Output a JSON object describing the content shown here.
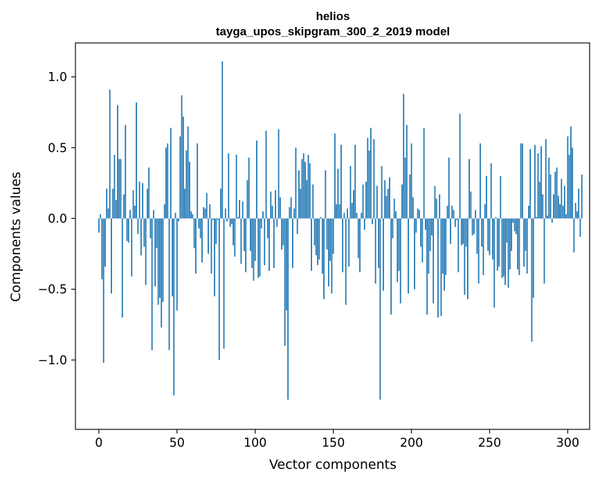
{
  "chart_data": {
    "type": "bar",
    "title_line1": "helios",
    "title_line2": "tayga_upos_skipgram_300_2_2019 model",
    "xlabel": "Vector components",
    "ylabel": "Components values",
    "xlim": [
      -15,
      314
    ],
    "ylim": [
      -1.49,
      1.24
    ],
    "xticks": [
      0,
      50,
      100,
      150,
      200,
      250,
      300
    ],
    "xtick_labels": [
      "0",
      "50",
      "100",
      "150",
      "200",
      "250",
      "300"
    ],
    "yticks": [
      -1.0,
      -0.5,
      0.0,
      0.5,
      1.0
    ],
    "ytick_labels": [
      "−1.0",
      "−0.5",
      "0.0",
      "0.5",
      "1.0"
    ],
    "bar_color": "#1f77b4",
    "values": [
      -0.1,
      0.03,
      -0.43,
      -1.02,
      -0.34,
      0.21,
      0.07,
      0.91,
      -0.53,
      0.21,
      0.45,
      0.13,
      0.8,
      0.42,
      0.42,
      -0.7,
      0.17,
      0.66,
      -0.16,
      -0.17,
      0.06,
      -0.41,
      0.2,
      0.09,
      0.82,
      -0.11,
      0.26,
      -0.26,
      0.25,
      -0.2,
      -0.47,
      0.21,
      0.36,
      -0.14,
      -0.93,
      0.06,
      -0.48,
      -0.21,
      -0.61,
      -0.56,
      -0.77,
      -0.59,
      0.1,
      0.5,
      0.53,
      -0.93,
      0.64,
      -0.55,
      -1.25,
      0.04,
      -0.65,
      -0.02,
      0.58,
      0.87,
      0.72,
      0.21,
      0.48,
      0.65,
      0.4,
      0.05,
      0.03,
      -0.21,
      -0.39,
      0.53,
      -0.07,
      -0.14,
      -0.31,
      0.08,
      0.07,
      0.18,
      -0.25,
      0.1,
      -0.39,
      -0.01,
      -0.55,
      -0.18,
      -0.01,
      -1.0,
      0.21,
      1.11,
      -0.92,
      0.07,
      -0.02,
      0.46,
      -0.06,
      -0.04,
      -0.19,
      -0.27,
      0.45,
      0.01,
      0.13,
      -0.32,
      0.12,
      -0.23,
      -0.38,
      0.27,
      0.43,
      -0.23,
      -0.35,
      -0.44,
      -0.3,
      0.55,
      -0.42,
      -0.41,
      -0.07,
      0.05,
      -0.33,
      0.62,
      -0.14,
      -0.37,
      0.19,
      0.09,
      -0.35,
      0.2,
      -0.06,
      0.63,
      0.15,
      -0.22,
      -0.19,
      -0.9,
      -0.65,
      -1.28,
      0.08,
      0.15,
      -0.35,
      0.07,
      0.5,
      -0.11,
      0.34,
      0.21,
      0.42,
      0.46,
      0.4,
      0.27,
      0.45,
      0.39,
      -0.37,
      0.24,
      -0.19,
      -0.26,
      -0.33,
      -0.29,
      0.01,
      -0.39,
      -0.57,
      0.34,
      -0.22,
      -0.48,
      -0.3,
      -0.53,
      -0.25,
      0.6,
      0.1,
      0.35,
      0.1,
      0.52,
      -0.38,
      0.04,
      -0.61,
      0.07,
      -0.34,
      0.37,
      0.11,
      0.2,
      0.52,
      0.04,
      -0.28,
      -0.38,
      0.04,
      0.24,
      -0.08,
      0.26,
      0.57,
      0.48,
      0.64,
      -0.04,
      0.56,
      -0.46,
      0.23,
      -0.35,
      -1.28,
      0.37,
      -0.51,
      0.27,
      0.16,
      0.21,
      0.29,
      -0.68,
      -0.14,
      0.14,
      0.05,
      -0.45,
      -0.37,
      -0.6,
      0.24,
      0.88,
      0.43,
      0.66,
      -0.53,
      0.31,
      0.53,
      0.15,
      -0.5,
      -0.1,
      0.07,
      0.06,
      -0.2,
      -0.31,
      0.64,
      -0.08,
      -0.68,
      -0.39,
      -0.23,
      -0.12,
      -0.6,
      0.23,
      0.14,
      -0.7,
      0.17,
      -0.69,
      -0.39,
      -0.51,
      -0.4,
      0.09,
      0.43,
      -0.18,
      0.09,
      0.06,
      -0.06,
      -0.01,
      -0.38,
      0.74,
      -0.19,
      -0.18,
      -0.54,
      -0.2,
      -0.57,
      0.42,
      0.19,
      -0.12,
      -0.11,
      0.06,
      -0.25,
      -0.46,
      0.53,
      -0.2,
      -0.4,
      0.1,
      0.3,
      -0.23,
      -0.26,
      0.39,
      -0.29,
      -0.63,
      0.01,
      -0.37,
      -0.34,
      0.3,
      -0.42,
      -0.41,
      -0.47,
      -0.17,
      -0.49,
      -0.36,
      -0.23,
      -0.03,
      -0.09,
      -0.11,
      -0.36,
      -0.4,
      0.53,
      0.53,
      -0.34,
      -0.23,
      -0.39,
      0.09,
      0.49,
      -0.87,
      -0.56,
      0.52,
      0.01,
      0.46,
      0.26,
      0.51,
      0.17,
      -0.46,
      0.56,
      0.02,
      0.43,
      0.31,
      -0.03,
      0.17,
      0.33,
      0.36,
      0.16,
      0.1,
      0.28,
      0.09,
      0.23,
      0.03,
      0.58,
      0.45,
      0.65,
      0.5,
      -0.24,
      0.11,
      0.05,
      0.21,
      -0.13,
      0.31
    ]
  }
}
